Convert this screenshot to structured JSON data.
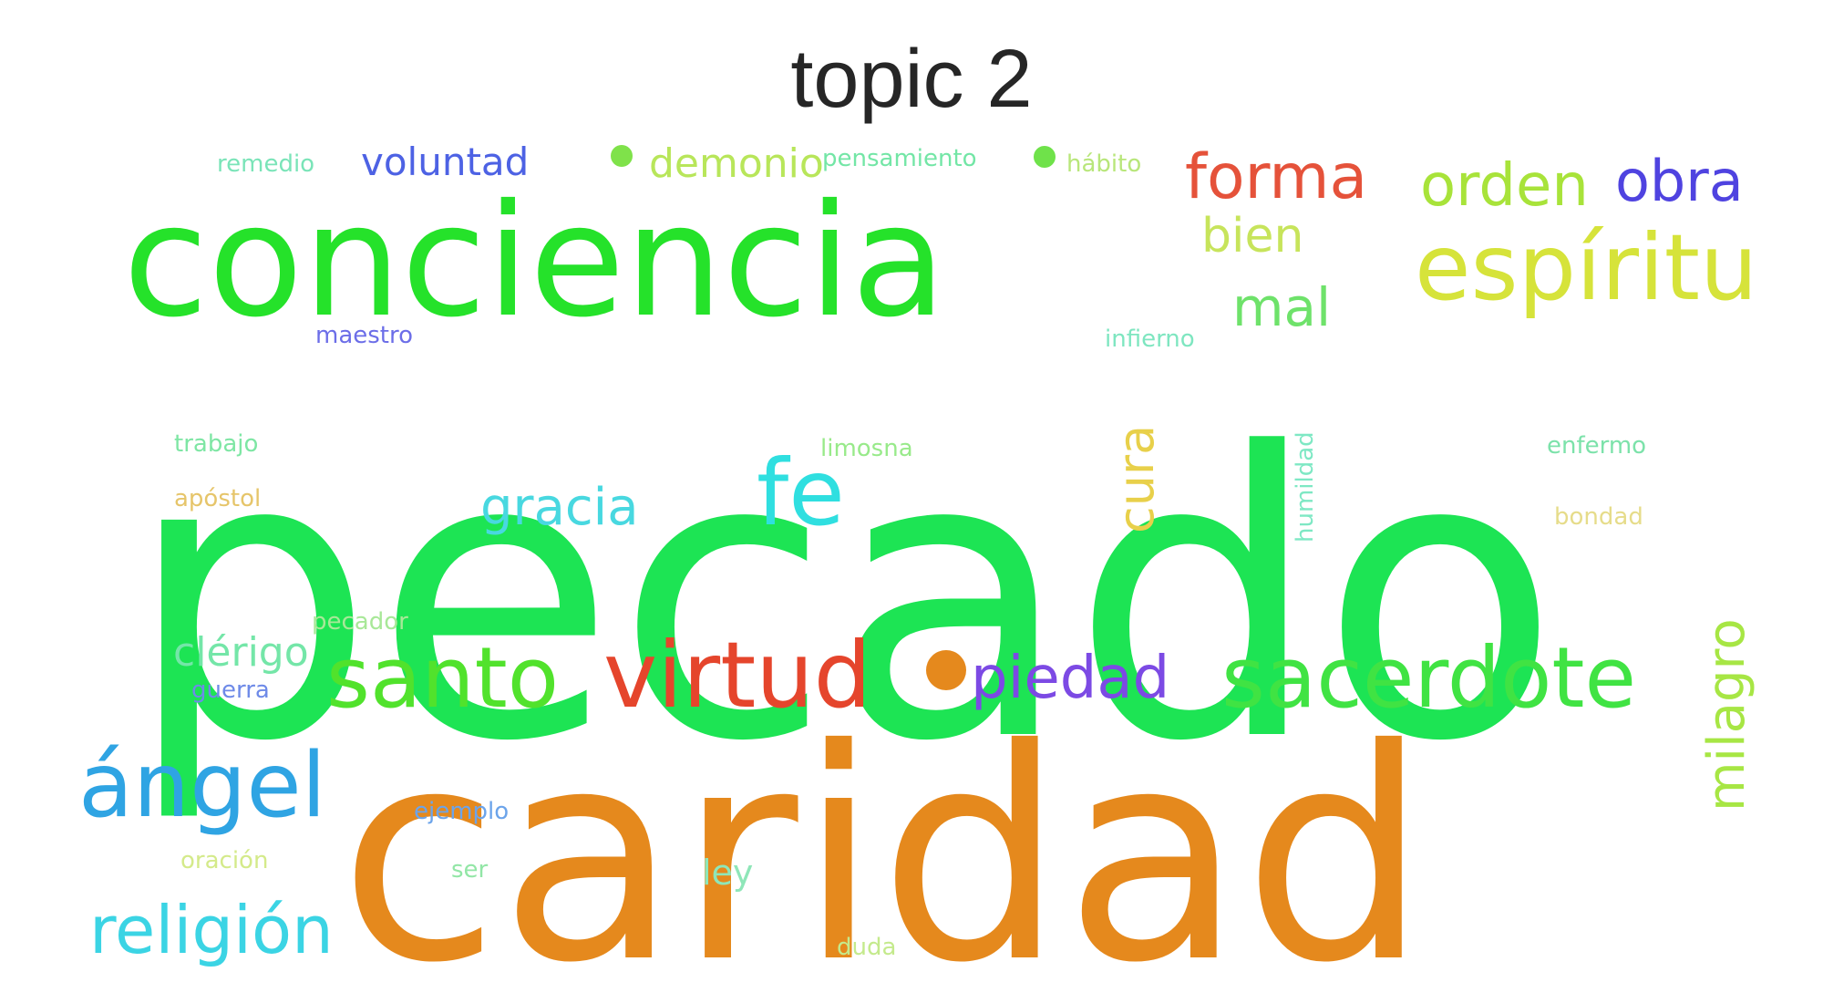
{
  "title": "topic 2",
  "words": [
    {
      "text": "pecado",
      "color": "#1de454"
    },
    {
      "text": "caridad",
      "color": "#e5891d"
    },
    {
      "text": "conciencia",
      "color": "#25e22a"
    },
    {
      "text": "espíritu",
      "color": "#d6e33a"
    },
    {
      "text": "santo",
      "color": "#51e22c"
    },
    {
      "text": "virtud",
      "color": "#e5452c"
    },
    {
      "text": "sacerdote",
      "color": "#40e343"
    },
    {
      "text": "ángel",
      "color": "#2fa4e3"
    },
    {
      "text": "religión",
      "color": "#3bd4e4"
    },
    {
      "text": "fe",
      "color": "#2fdfe0"
    },
    {
      "text": "forma",
      "color": "#e5523a"
    },
    {
      "text": "orden",
      "color": "#a8e33a"
    },
    {
      "text": "obra",
      "color": "#4f43e0"
    },
    {
      "text": "piedad",
      "color": "#7c4ae4"
    },
    {
      "text": "milagro",
      "color": "#a7e644"
    },
    {
      "text": "voluntad",
      "color": "#4d62e4"
    },
    {
      "text": "demonio",
      "color": "#b8e65a"
    },
    {
      "text": "bien",
      "color": "#c7e45b"
    },
    {
      "text": "mal",
      "color": "#6ee26a"
    },
    {
      "text": "gracia",
      "color": "#48d8e0"
    },
    {
      "text": "cura",
      "color": "#e8d04a"
    },
    {
      "text": "clérigo",
      "color": "#74e6a8"
    },
    {
      "text": "pensamiento",
      "color": "#73e6a6"
    },
    {
      "text": "remedio",
      "color": "#7ae4b8"
    },
    {
      "text": "hábito",
      "color": "#b8e67a"
    },
    {
      "text": "maestro",
      "color": "#6c6ee8"
    },
    {
      "text": "infierno",
      "color": "#7ee6c0"
    },
    {
      "text": "trabajo",
      "color": "#7ee6a4"
    },
    {
      "text": "apóstol",
      "color": "#e6c56a"
    },
    {
      "text": "limosna",
      "color": "#98ea8a"
    },
    {
      "text": "humildad",
      "color": "#7ee8c4"
    },
    {
      "text": "enfermo",
      "color": "#7ce2aa"
    },
    {
      "text": "bondad",
      "color": "#e6dc8a"
    },
    {
      "text": "pecador",
      "color": "#a8e898"
    },
    {
      "text": "guerra",
      "color": "#6e8ae8"
    },
    {
      "text": "ejemplo",
      "color": "#6ca4ea"
    },
    {
      "text": "oración",
      "color": "#d4ea8a"
    },
    {
      "text": "ser",
      "color": "#92e6a6"
    },
    {
      "text": "ley",
      "color": "#8ee6b8"
    },
    {
      "text": "duda",
      "color": "#c4ea8c"
    }
  ],
  "dots": [
    {
      "name": "dot-demonio",
      "color": "#7fe24a"
    },
    {
      "name": "dot-habito",
      "color": "#6fe24a"
    },
    {
      "name": "dot-piedad",
      "color": "#e5891d"
    }
  ]
}
